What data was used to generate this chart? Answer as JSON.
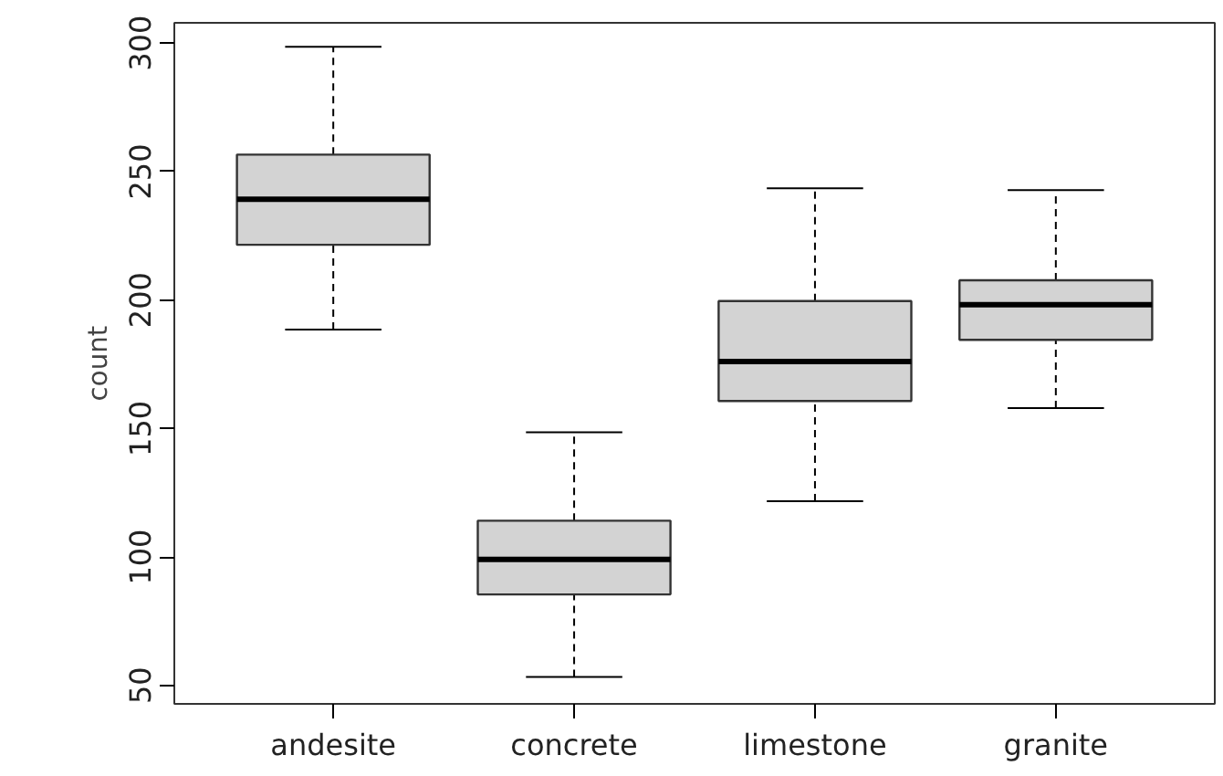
{
  "chart_data": {
    "type": "box",
    "ylabel": "count",
    "categories": [
      "andesite",
      "concrete",
      "limestone",
      "granite"
    ],
    "color": "#d3d3d3",
    "boxes": [
      {
        "low": 188.5,
        "q1": 221.5,
        "median": 239.2,
        "q3": 256.6,
        "high": 298.6
      },
      {
        "low": 53.3,
        "q1": 85.4,
        "median": 99,
        "q3": 114.1,
        "high": 148.5
      },
      {
        "low": 121.7,
        "q1": 160.7,
        "median": 176.1,
        "q3": 199.6,
        "high": 243.5
      },
      {
        "low": 157.9,
        "q1": 184.5,
        "median": 198.2,
        "q3": 207.7,
        "high": 242.8
      }
    ],
    "ylim": [
      42.8,
      307.9
    ],
    "yticks": [
      50,
      100,
      150,
      200,
      250,
      300
    ],
    "grid": false
  }
}
